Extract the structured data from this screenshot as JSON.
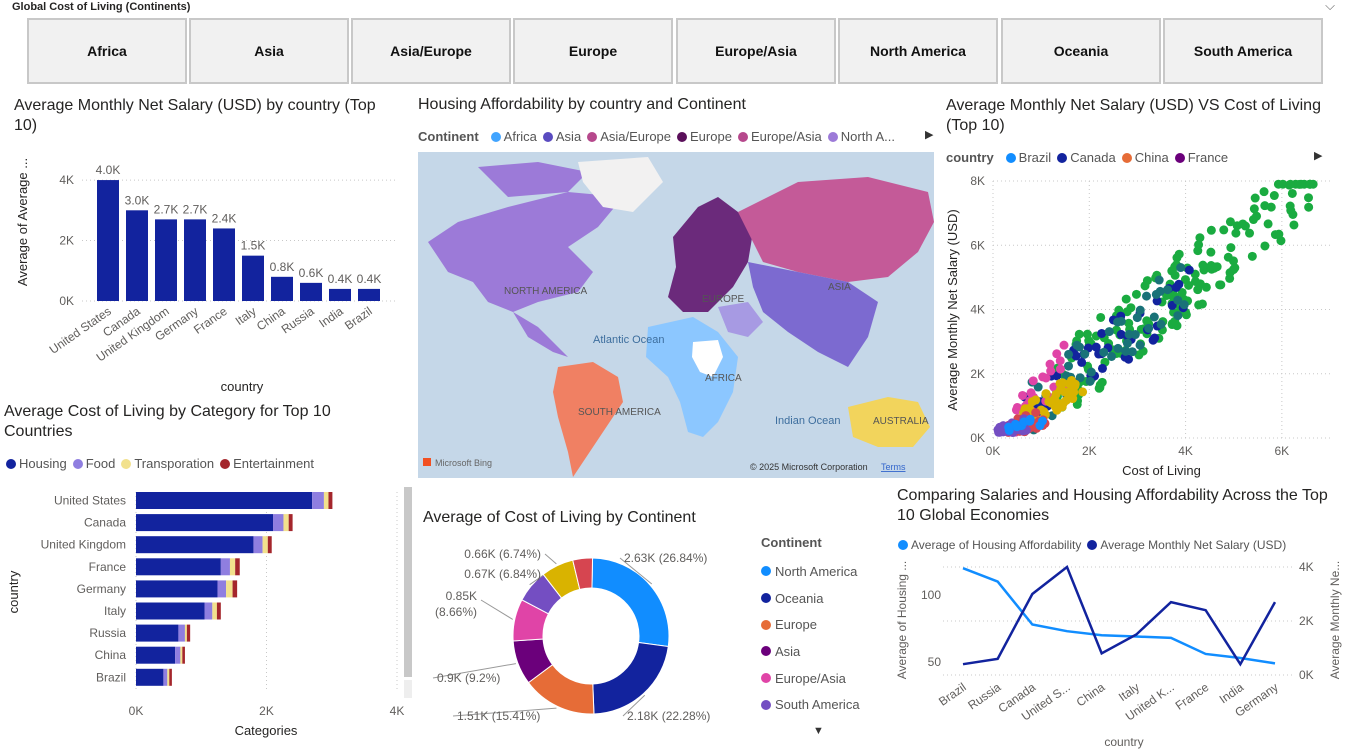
{
  "slicer": {
    "title": "Global Cost of Living (Continents)",
    "tiles": [
      "Africa",
      "Asia",
      "Asia/Europe",
      "Europe",
      "Europe/Asia",
      "North America",
      "Oceania",
      "South America"
    ]
  },
  "salary_chart": {
    "title": "Average Monthly Net Salary (USD) by country (Top 10)",
    "chart_data": {
      "type": "bar",
      "categories": [
        "United States",
        "Canada",
        "United Kingdom",
        "Germany",
        "France",
        "Italy",
        "China",
        "Russia",
        "India",
        "Brazil"
      ],
      "values": [
        4.0,
        3.0,
        2.7,
        2.7,
        2.4,
        1.5,
        0.8,
        0.6,
        0.4,
        0.4
      ],
      "data_labels": [
        "4.0K",
        "3.0K",
        "2.7K",
        "2.7K",
        "2.4K",
        "1.5K",
        "0.8K",
        "0.6K",
        "0.4K",
        "0.4K"
      ],
      "yticks": [
        "0K",
        "2K",
        "4K"
      ],
      "ylim": [
        0,
        4.3
      ],
      "xlabel": "country",
      "ylabel": "Average of Average ...",
      "color": "#12239e"
    }
  },
  "map": {
    "title": "Housing Affordability by country and Continent",
    "legend_title": "Continent",
    "legend": [
      {
        "name": "Africa",
        "color": "#41a4ff"
      },
      {
        "name": "Asia",
        "color": "#5a4bc0"
      },
      {
        "name": "Asia/Europe",
        "color": "#b6488c"
      },
      {
        "name": "Europe",
        "color": "#5a0f5a"
      },
      {
        "name": "Europe/Asia",
        "color": "#b6488c"
      },
      {
        "name": "North A...",
        "color": "#9c7ad8"
      }
    ],
    "labels": {
      "north_america": "NORTH AMERICA",
      "europe": "EUROPE",
      "asia": "ASIA",
      "africa": "AFRICA",
      "south_america": "SOUTH AMERICA",
      "australia": "AUSTRALIA",
      "atlantic": "Atlantic Ocean",
      "indian": "Indian Ocean"
    },
    "bing": "Microsoft Bing",
    "copyright": "© 2025 Microsoft Corporation",
    "terms": "Terms"
  },
  "scatter": {
    "title": "Average Monthly Net Salary (USD) VS Cost of Living (Top 10)",
    "legend_title": "country",
    "legend": [
      {
        "name": "Brazil",
        "color": "#118dff"
      },
      {
        "name": "Canada",
        "color": "#12239e"
      },
      {
        "name": "China",
        "color": "#e66c37"
      },
      {
        "name": "France",
        "color": "#6b007b"
      }
    ],
    "chart_data": {
      "type": "scatter",
      "xlabel": "Cost of Living",
      "ylabel": "Average Monthly Net Salary (USD)",
      "xticks": [
        "0K",
        "2K",
        "4K",
        "6K"
      ],
      "yticks": [
        "0K",
        "2K",
        "4K",
        "6K",
        "8K"
      ],
      "xlim": [
        0,
        7
      ],
      "ylim": [
        0,
        8
      ],
      "series_colors": [
        "#1aab40",
        "#12239e",
        "#e044a7",
        "#d9b300",
        "#744ec2",
        "#e66c37",
        "#118dff",
        "#197278",
        "#d64550"
      ]
    }
  },
  "category_chart": {
    "title": "Average Cost of Living by Category for Top 10 Countries",
    "legend": [
      {
        "name": "Housing",
        "color": "#12239e"
      },
      {
        "name": "Food",
        "color": "#8f7ee0"
      },
      {
        "name": "Transporation",
        "color": "#f2e18d"
      },
      {
        "name": "Entertainment",
        "color": "#a4262c"
      }
    ],
    "chart_data": {
      "type": "bar",
      "orientation": "horizontal",
      "stacked": true,
      "categories": [
        "United States",
        "Canada",
        "United Kingdom",
        "France",
        "Germany",
        "Italy",
        "Russia",
        "China",
        "Brazil"
      ],
      "series": [
        {
          "name": "Housing",
          "values": [
            2.7,
            2.1,
            1.8,
            1.3,
            1.25,
            1.05,
            0.65,
            0.6,
            0.42
          ]
        },
        {
          "name": "Food",
          "values": [
            0.18,
            0.16,
            0.14,
            0.14,
            0.13,
            0.12,
            0.1,
            0.08,
            0.06
          ]
        },
        {
          "name": "Transporation",
          "values": [
            0.07,
            0.08,
            0.08,
            0.08,
            0.1,
            0.07,
            0.03,
            0.03,
            0.03
          ]
        },
        {
          "name": "Entertainment",
          "values": [
            0.06,
            0.06,
            0.06,
            0.07,
            0.07,
            0.06,
            0.05,
            0.04,
            0.04
          ]
        }
      ],
      "xticks": [
        "0K",
        "2K",
        "4K"
      ],
      "xlim": [
        0,
        4
      ],
      "xlabel": "Categories",
      "ylabel": "country"
    }
  },
  "donut": {
    "title": "Average of Cost of Living by Continent",
    "legend_title": "Continent",
    "legend": [
      {
        "name": "North America",
        "color": "#118dff"
      },
      {
        "name": "Oceania",
        "color": "#12239e"
      },
      {
        "name": "Europe",
        "color": "#e66c37"
      },
      {
        "name": "Asia",
        "color": "#6b007b"
      },
      {
        "name": "Europe/Asia",
        "color": "#e044a7"
      },
      {
        "name": "South America",
        "color": "#744ec2"
      }
    ],
    "chart_data": {
      "type": "pie",
      "slices": [
        {
          "name": "North America",
          "value": 2.63,
          "label": "2.63K (26.84%)",
          "color": "#118dff"
        },
        {
          "name": "Oceania",
          "value": 2.18,
          "label": "2.18K (22.28%)",
          "color": "#12239e"
        },
        {
          "name": "Europe",
          "value": 1.51,
          "label": "1.51K (15.41%)",
          "color": "#e66c37"
        },
        {
          "name": "Asia",
          "value": 0.9,
          "label": "0.9K (9.2%)",
          "color": "#6b007b"
        },
        {
          "name": "Europe/Asia",
          "value": 0.85,
          "label": "0.85K (8.66%)",
          "color": "#e044a7"
        },
        {
          "name": "South America",
          "value": 0.67,
          "label": "0.67K (6.84%)",
          "color": "#744ec2"
        },
        {
          "name": "",
          "value": 0.66,
          "label": "0.66K (6.74%)",
          "color": "#d9b300"
        },
        {
          "name": "",
          "value": 0.4,
          "label": "",
          "color": "#d64550"
        }
      ]
    }
  },
  "line_chart": {
    "title": "Comparing Salaries and Housing Affordability Across the Top 10 Global Economies",
    "legend": [
      {
        "name": "Average of Housing Affordability",
        "color": "#118dff"
      },
      {
        "name": "Average Monthly Net Salary (USD)",
        "color": "#12239e"
      }
    ],
    "chart_data": {
      "type": "line",
      "categories": [
        "Brazil",
        "Russia",
        "Canada",
        "United S...",
        "China",
        "Italy",
        "United K...",
        "France",
        "India",
        "Germany"
      ],
      "series": [
        {
          "name": "Average of Housing Affordability",
          "axis": "left",
          "values": [
            120,
            110,
            78,
            73,
            70,
            69,
            68,
            56,
            53,
            49
          ]
        },
        {
          "name": "Average Monthly Net Salary (USD)",
          "axis": "right",
          "values": [
            0.4,
            0.6,
            3.0,
            4.0,
            0.8,
            1.5,
            2.7,
            2.4,
            0.4,
            2.7
          ]
        }
      ],
      "left_ticks": [
        "50",
        "100"
      ],
      "right_ticks": [
        "0K",
        "2K",
        "4K"
      ],
      "xlabel": "country",
      "ylabel_left": "Average of Housing ...",
      "ylabel_right": "Average Monthly Ne..."
    }
  }
}
